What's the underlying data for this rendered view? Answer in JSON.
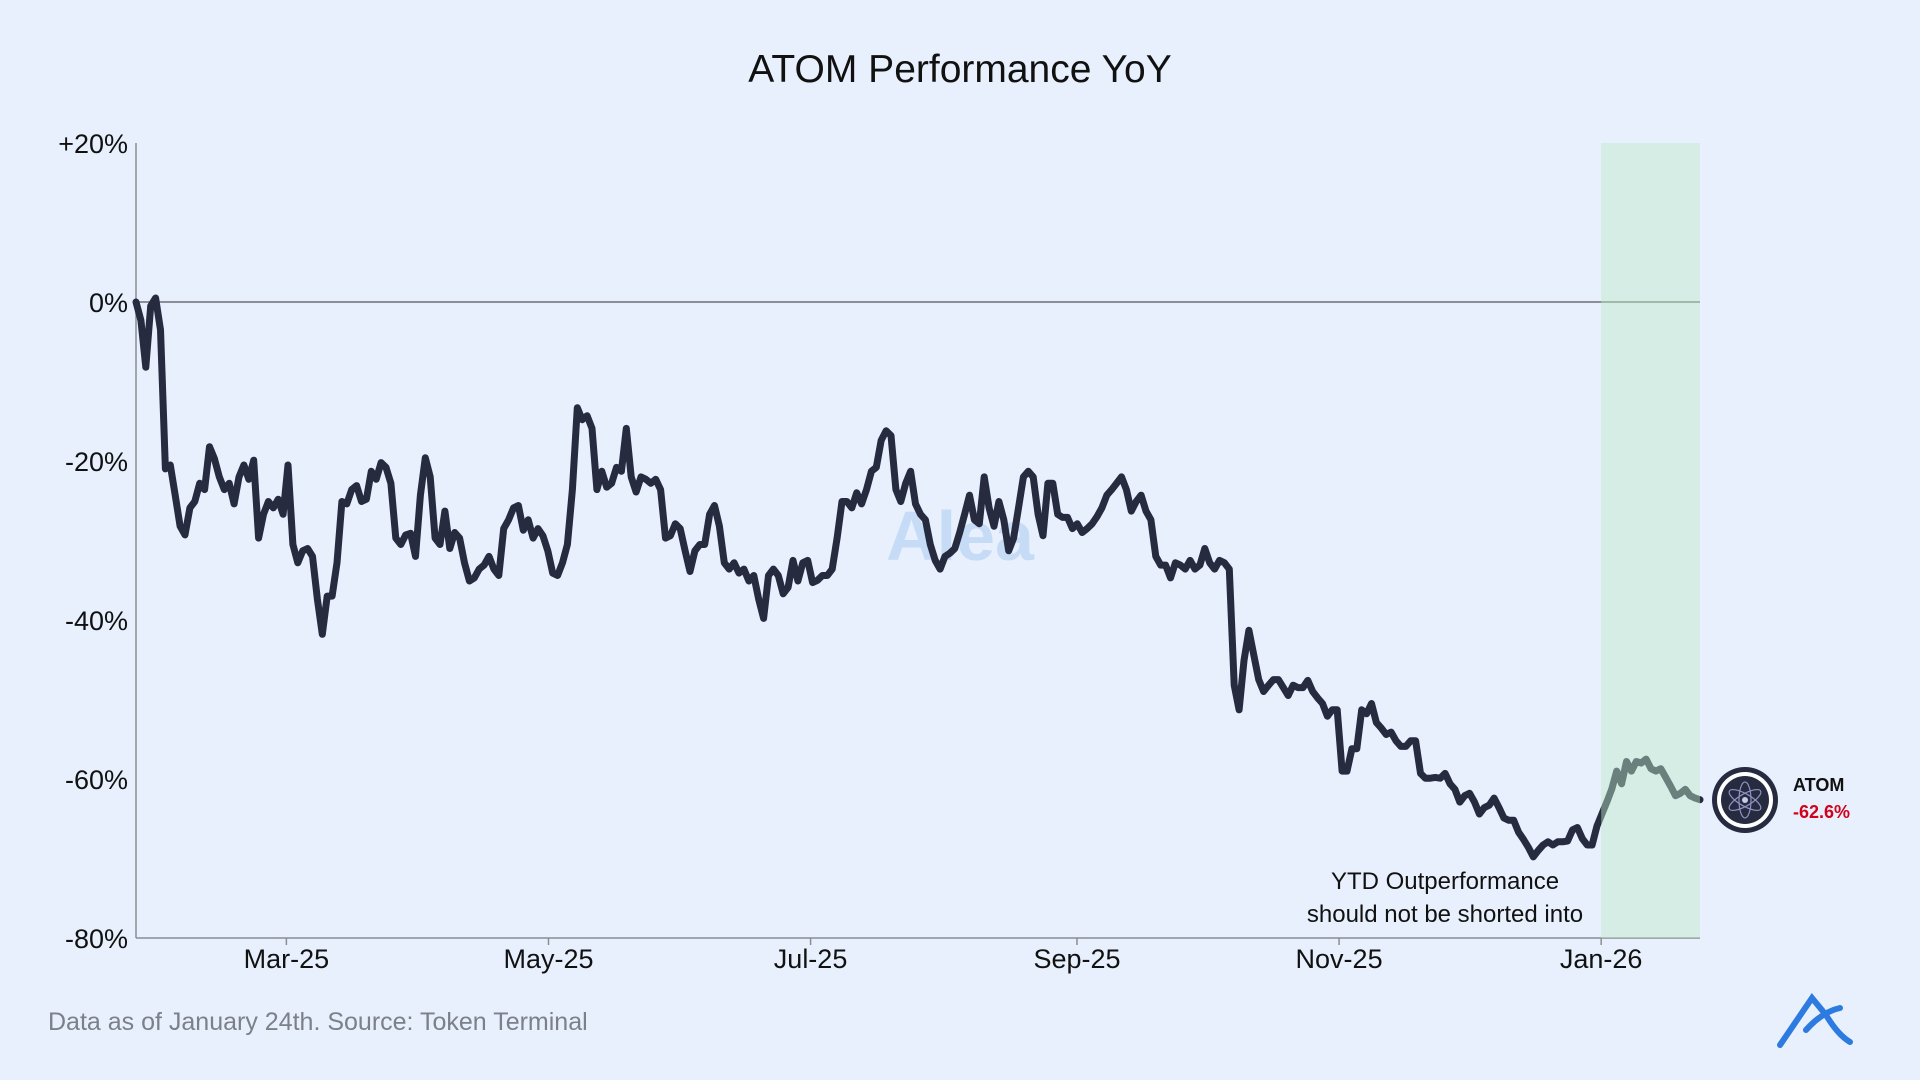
{
  "chart_data": {
    "type": "line",
    "title": "ATOM Performance YoY",
    "xlabel": "",
    "ylabel": "",
    "xlim": [
      "2025-01-25",
      "2026-01-24"
    ],
    "ylim": [
      -80,
      20
    ],
    "yticks": [
      20,
      0,
      -20,
      -40,
      -60,
      -80
    ],
    "ytick_labels": [
      "+20%",
      "0%",
      "-20%",
      "-40%",
      "-60%",
      "-80%"
    ],
    "xticks": [
      "2025-03-01",
      "2025-05-01",
      "2025-07-01",
      "2025-09-01",
      "2025-11-01",
      "2026-01-01"
    ],
    "xtick_labels": [
      "Mar-25",
      "May-25",
      "Jul-25",
      "Sep-25",
      "Nov-25",
      "Jan-26"
    ],
    "grid": false,
    "reference_line": 0,
    "highlight_region": {
      "start": "2026-01-01",
      "end": "2026-01-24",
      "color": "#d6ede0"
    },
    "line_color": "#262b40",
    "series": [
      {
        "name": "ATOM",
        "last_value_label": "-62.6%",
        "values": [
          0,
          -2.3,
          -8.2,
          -0.5,
          0.5,
          -3.5,
          -21.0,
          -20.5,
          -24.3,
          -28.2,
          -29.3,
          -25.9,
          -25.1,
          -22.8,
          -23.6,
          -18.2,
          -19.7,
          -22.0,
          -23.6,
          -22.8,
          -25.4,
          -22.0,
          -20.5,
          -22.3,
          -19.9,
          -29.7,
          -26.7,
          -25.1,
          -25.9,
          -24.8,
          -26.7,
          -20.5,
          -30.5,
          -32.8,
          -31.3,
          -31.0,
          -32.0,
          -37.4,
          -41.8,
          -37.0,
          -37.0,
          -32.8,
          -25.1,
          -25.4,
          -23.6,
          -23.1,
          -25.1,
          -24.8,
          -21.3,
          -22.3,
          -20.2,
          -20.8,
          -22.8,
          -29.7,
          -30.5,
          -29.3,
          -29.1,
          -32.0,
          -24.3,
          -19.6,
          -22.0,
          -29.7,
          -30.5,
          -26.3,
          -31.0,
          -29.0,
          -29.7,
          -32.8,
          -35.1,
          -34.7,
          -33.6,
          -33.1,
          -32.0,
          -33.6,
          -34.4,
          -28.5,
          -27.4,
          -25.9,
          -25.6,
          -28.7,
          -27.4,
          -29.7,
          -28.5,
          -29.4,
          -31.3,
          -34.1,
          -34.4,
          -32.8,
          -30.5,
          -23.6,
          -13.3,
          -14.8,
          -14.3,
          -15.9,
          -23.6,
          -21.3,
          -23.3,
          -22.8,
          -20.8,
          -21.3,
          -15.9,
          -22.0,
          -23.9,
          -22.0,
          -22.3,
          -22.8,
          -22.3,
          -23.6,
          -29.7,
          -29.4,
          -27.9,
          -28.5,
          -31.3,
          -33.9,
          -31.3,
          -30.5,
          -30.5,
          -26.7,
          -25.6,
          -28.2,
          -32.8,
          -33.6,
          -32.8,
          -34.1,
          -33.6,
          -35.1,
          -34.4,
          -37.4,
          -39.8,
          -34.4,
          -33.6,
          -34.4,
          -36.7,
          -35.9,
          -32.5,
          -35.1,
          -32.8,
          -32.5,
          -35.3,
          -35.0,
          -34.4,
          -34.4,
          -33.6,
          -29.7,
          -25.1,
          -25.1,
          -25.9,
          -24.0,
          -25.4,
          -23.6,
          -21.3,
          -20.8,
          -17.4,
          -16.2,
          -16.8,
          -23.6,
          -25.1,
          -22.8,
          -21.3,
          -25.4,
          -26.7,
          -27.4,
          -30.5,
          -32.5,
          -33.6,
          -32.0,
          -31.6,
          -31.0,
          -29.0,
          -26.7,
          -24.3,
          -27.4,
          -27.9,
          -22.0,
          -25.9,
          -28.2,
          -25.1,
          -27.4,
          -31.3,
          -29.7,
          -25.9,
          -22.0,
          -21.3,
          -22.0,
          -26.7,
          -29.4,
          -22.8,
          -22.8,
          -26.7,
          -27.1,
          -27.1,
          -28.5,
          -27.9,
          -29.0,
          -28.5,
          -27.9,
          -27.0,
          -25.9,
          -24.3,
          -23.6,
          -22.8,
          -22.0,
          -23.6,
          -26.3,
          -25.1,
          -24.3,
          -26.3,
          -27.4,
          -32.0,
          -33.1,
          -33.1,
          -34.7,
          -32.8,
          -33.1,
          -33.6,
          -32.5,
          -33.6,
          -33.1,
          -31.0,
          -32.8,
          -33.6,
          -32.5,
          -32.8,
          -33.6,
          -48.2,
          -51.3,
          -45.1,
          -41.3,
          -44.4,
          -47.5,
          -49.0,
          -48.2,
          -47.5,
          -47.5,
          -48.5,
          -49.5,
          -48.2,
          -48.5,
          -48.5,
          -47.6,
          -49.0,
          -49.8,
          -50.5,
          -52.1,
          -51.3,
          -51.3,
          -59.0,
          -59.0,
          -56.2,
          -56.2,
          -51.3,
          -51.8,
          -50.5,
          -52.9,
          -53.6,
          -54.4,
          -54.1,
          -55.2,
          -55.9,
          -55.9,
          -55.2,
          -55.2,
          -59.3,
          -59.9,
          -59.9,
          -59.8,
          -59.9,
          -59.3,
          -60.6,
          -61.3,
          -62.9,
          -62.1,
          -61.8,
          -62.9,
          -64.4,
          -63.6,
          -63.3,
          -62.4,
          -63.6,
          -64.9,
          -65.2,
          -65.2,
          -66.7,
          -67.6,
          -68.6,
          -69.8,
          -69.0,
          -68.3,
          -67.9,
          -68.3,
          -67.9,
          -67.9,
          -67.8,
          -66.4,
          -66.1,
          -67.5,
          -68.3,
          -68.3,
          -65.9,
          -64.4,
          -62.9,
          -61.3,
          -59.0,
          -60.6,
          -57.8,
          -59.0,
          -57.8,
          -58.0,
          -57.5,
          -58.7,
          -59.0,
          -58.7,
          -59.8,
          -60.9,
          -62.1,
          -61.8,
          -61.3,
          -62.1,
          -62.4,
          -62.6
        ]
      }
    ],
    "annotations": [
      "YTD Outperformance",
      "should not be shorted into"
    ],
    "watermark": "Alea"
  },
  "footer": {
    "source": "Data as of January 24th. Source: Token Terminal"
  },
  "legend": {
    "asset": "ATOM",
    "value": "-62.6%",
    "value_color": "#d0021b",
    "icon": "cosmos-atom-icon"
  },
  "brand": {
    "logo": "alea-logo",
    "color": "#2d7be0"
  }
}
